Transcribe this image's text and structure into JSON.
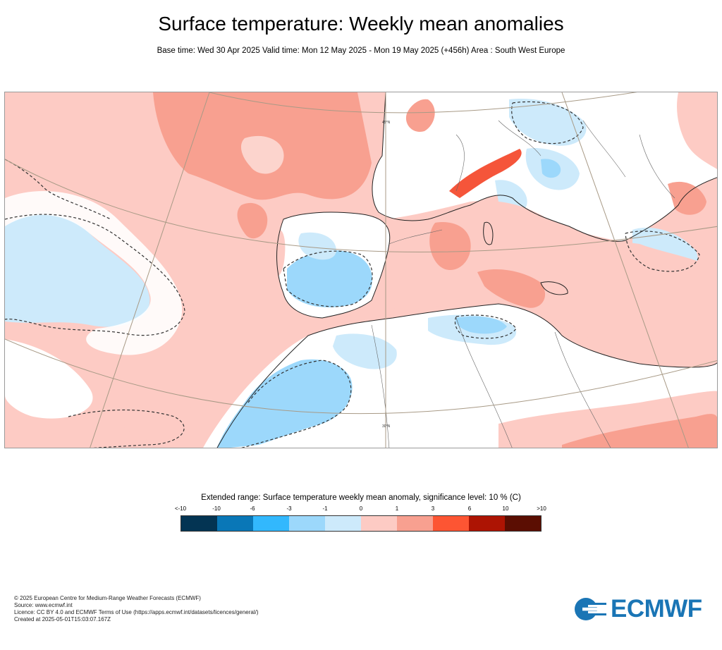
{
  "header": {
    "title": "Surface temperature: Weekly mean anomalies",
    "subtitle": "Base time: Wed 30 Apr 2025 Valid time: Mon 12 May 2025 - Mon 19 May 2025 (+456h) Area : South West Europe"
  },
  "map": {
    "region": "South West Europe",
    "graticule_labels": {
      "top": "45°N",
      "bottom": "30°N"
    },
    "colors": {
      "anomaly_pos_light": "#fdcbc4",
      "anomaly_pos_mid": "#f8a090",
      "anomaly_pos_strong": "#f5553a",
      "anomaly_neg_light": "#cdeafb",
      "anomaly_neg_mid": "#9cd8fb",
      "land_neutral": "#ffffff"
    }
  },
  "legend": {
    "title": "Extended range: Surface temperature weekly mean anomaly, significance level: 10 % (C)",
    "tick_labels": [
      "<-10",
      "-10",
      "-6",
      "-3",
      "-1",
      "0",
      "1",
      "3",
      "6",
      "10",
      ">10"
    ],
    "colors": [
      "#033453",
      "#0977b7",
      "#32b8fd",
      "#9cd8fb",
      "#cdeafb",
      "#fdcbc4",
      "#f8a090",
      "#fd5533",
      "#ad1403",
      "#5b0e02"
    ]
  },
  "footer": {
    "lines": [
      "© 2025 European Centre for Medium-Range Weather Forecasts (ECMWF)",
      "Source: www.ecmwf.int",
      "Licence: CC BY 4.0 and ECMWF Terms of Use (https://apps.ecmwf.int/datasets/licences/general/)",
      "Created at 2025-05-01T15:03:07.167Z"
    ]
  },
  "logo": {
    "text": "ECMWF",
    "color": "#1a75b5"
  }
}
